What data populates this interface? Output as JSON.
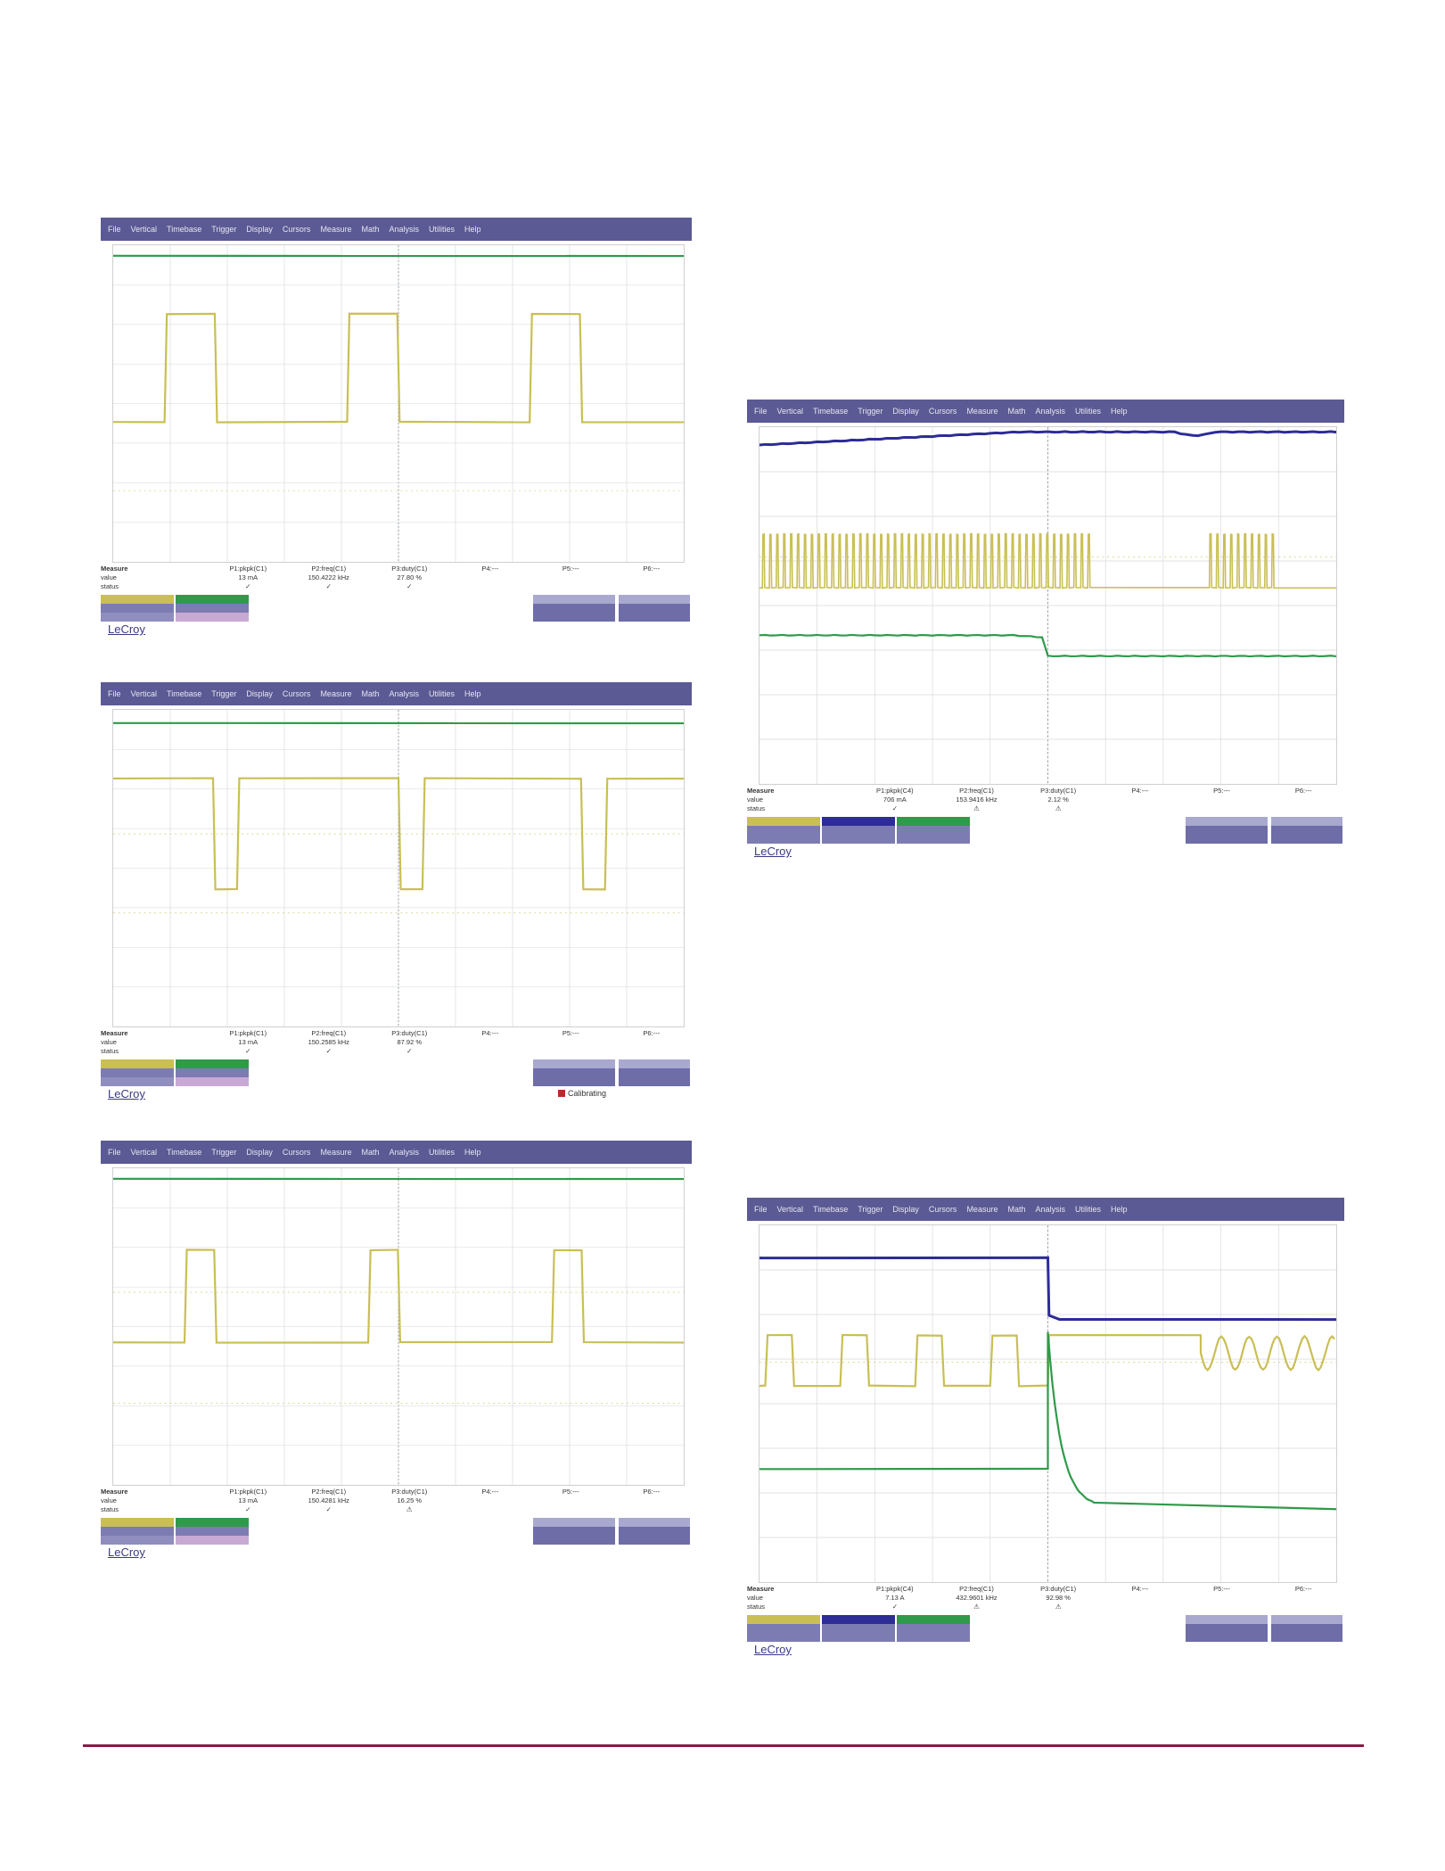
{
  "menu": [
    "File",
    "Vertical",
    "Timebase",
    "Trigger",
    "Display",
    "Cursors",
    "Measure",
    "Math",
    "Analysis",
    "Utilities",
    "Help"
  ],
  "colors": {
    "menubar": "#5b5a94",
    "ch1": "#c9bf55",
    "ch2": "#2e2c96",
    "ch3": "#2f9a4a",
    "rule": "#8a1a44",
    "brand": "#3a3a86"
  },
  "row_labels": {
    "measure": "Measure",
    "value": "value",
    "status": "status"
  },
  "brand": "LeCroy",
  "calibrating_label": "Calibrating",
  "screens": [
    {
      "id": "s1",
      "measurements": [
        {
          "name": "P1:pkpk(C1)",
          "value": "13 mA",
          "status": "✓"
        },
        {
          "name": "P2:freq(C1)",
          "value": "150.4222 kHz",
          "status": "✓"
        },
        {
          "name": "P3:duty(C1)",
          "value": "27.80 %",
          "status": "✓"
        },
        {
          "name": "P4:---",
          "value": "",
          "status": ""
        },
        {
          "name": "P5:---",
          "value": "",
          "status": ""
        },
        {
          "name": "P6:---",
          "value": "",
          "status": ""
        }
      ]
    },
    {
      "id": "s2",
      "measurements": [
        {
          "name": "P1:pkpk(C1)",
          "value": "13 mA",
          "status": "✓"
        },
        {
          "name": "P2:freq(C1)",
          "value": "150.2585 kHz",
          "status": "✓"
        },
        {
          "name": "P3:duty(C1)",
          "value": "87.92 %",
          "status": "✓"
        },
        {
          "name": "P4:---",
          "value": "",
          "status": ""
        },
        {
          "name": "P5:---",
          "value": "",
          "status": ""
        },
        {
          "name": "P6:---",
          "value": "",
          "status": ""
        }
      ]
    },
    {
      "id": "s3",
      "measurements": [
        {
          "name": "P1:pkpk(C1)",
          "value": "13 mA",
          "status": "✓"
        },
        {
          "name": "P2:freq(C1)",
          "value": "150.4281 kHz",
          "status": "✓"
        },
        {
          "name": "P3:duty(C1)",
          "value": "16.25 %",
          "status": "⚠"
        },
        {
          "name": "P4:---",
          "value": "",
          "status": ""
        },
        {
          "name": "P5:---",
          "value": "",
          "status": ""
        },
        {
          "name": "P6:---",
          "value": "",
          "status": ""
        }
      ]
    },
    {
      "id": "s4",
      "measurements": [
        {
          "name": "P1:pkpk(C4)",
          "value": "706 mA",
          "status": "✓"
        },
        {
          "name": "P2:freq(C1)",
          "value": "153.9416 kHz",
          "status": "⚠"
        },
        {
          "name": "P3:duty(C1)",
          "value": "2.12 %",
          "status": "⚠"
        },
        {
          "name": "P4:---",
          "value": "",
          "status": ""
        },
        {
          "name": "P5:---",
          "value": "",
          "status": ""
        },
        {
          "name": "P6:---",
          "value": "",
          "status": ""
        }
      ]
    },
    {
      "id": "s5",
      "measurements": [
        {
          "name": "P1:pkpk(C4)",
          "value": "7.13 A",
          "status": "✓"
        },
        {
          "name": "P2:freq(C1)",
          "value": "432.9601 kHz",
          "status": "⚠"
        },
        {
          "name": "P3:duty(C1)",
          "value": "92.98 %",
          "status": "⚠"
        },
        {
          "name": "P4:---",
          "value": "",
          "status": ""
        },
        {
          "name": "P5:---",
          "value": "",
          "status": ""
        },
        {
          "name": "P6:---",
          "value": "",
          "status": ""
        }
      ]
    }
  ]
}
